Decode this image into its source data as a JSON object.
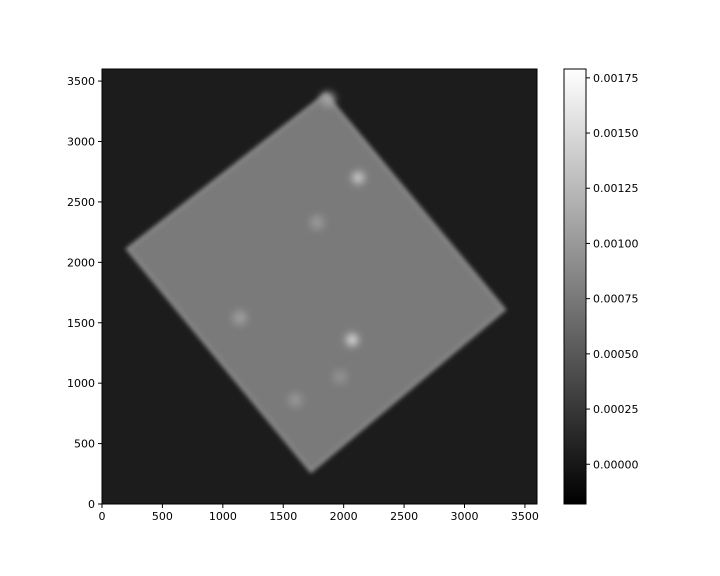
{
  "chart_data": {
    "type": "heatmap",
    "title": "",
    "xlabel": "",
    "ylabel": "",
    "xlim": [
      0,
      3600
    ],
    "ylim": [
      0,
      3600
    ],
    "xticks": [
      0,
      500,
      1000,
      1500,
      2000,
      2500,
      3000,
      3500
    ],
    "yticks": [
      0,
      500,
      1000,
      1500,
      2000,
      2500,
      3000,
      3500
    ],
    "colormap": "gray",
    "background_value": 3e-05,
    "footprint": {
      "corners": [
        [
          1850,
          3390
        ],
        [
          3330,
          1610
        ],
        [
          1730,
          270
        ],
        [
          210,
          2110
        ]
      ],
      "value": 0.00079
    },
    "blobs": [
      {
        "x": 2070,
        "y": 1360,
        "value": 0.0015
      },
      {
        "x": 2120,
        "y": 2700,
        "value": 0.0014
      },
      {
        "x": 1140,
        "y": 1540,
        "value": 0.00105
      },
      {
        "x": 1780,
        "y": 2330,
        "value": 0.001
      },
      {
        "x": 1600,
        "y": 860,
        "value": 0.00098
      },
      {
        "x": 1970,
        "y": 1050,
        "value": 0.00095
      },
      {
        "x": 1870,
        "y": 3350,
        "value": 0.0011
      }
    ],
    "colorbar": {
      "vmin": -0.00018,
      "vmax": 0.00179,
      "ticks": [
        0.0,
        0.00025,
        0.0005,
        0.00075,
        0.001,
        0.00125,
        0.0015,
        0.00175
      ],
      "tick_labels": [
        "0.00000",
        "0.00025",
        "0.00050",
        "0.00075",
        "0.00100",
        "0.00125",
        "0.00150",
        "0.00175"
      ]
    },
    "colors": {
      "background": "#1c1c1c",
      "footprint": "#7a7a7a",
      "footprint_edge": "#909090",
      "axis": "#000000"
    }
  }
}
